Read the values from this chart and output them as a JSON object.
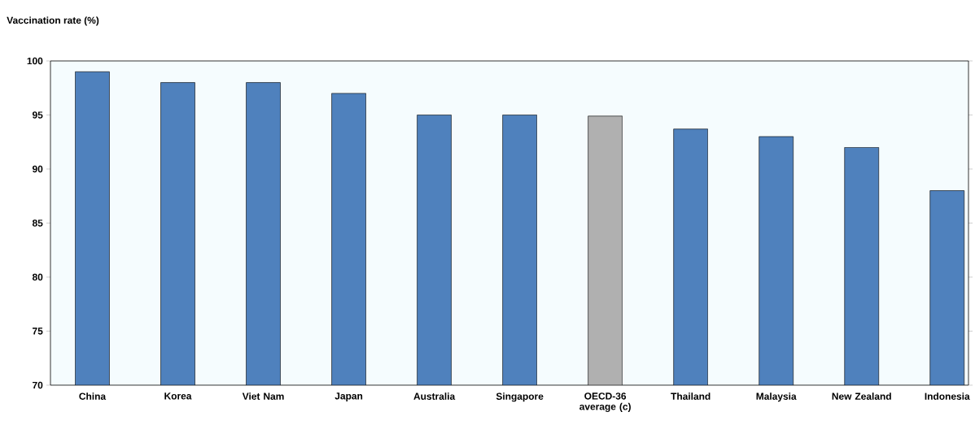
{
  "chart_data": {
    "type": "bar",
    "ylabel": "Vaccination rate (%)",
    "categories": [
      "China",
      "Korea",
      "Viet Nam",
      "Japan",
      "Australia",
      "Singapore",
      "OECD-36 average (c)",
      "Thailand",
      "Malaysia",
      "New Zealand",
      "Indonesia"
    ],
    "values": [
      99,
      98,
      98,
      97,
      95,
      95,
      94.9,
      93.7,
      93,
      92,
      88
    ],
    "colors": [
      "#4f81bd",
      "#4f81bd",
      "#4f81bd",
      "#4f81bd",
      "#4f81bd",
      "#4f81bd",
      "#b0b0b0",
      "#4f81bd",
      "#4f81bd",
      "#4f81bd",
      "#4f81bd"
    ],
    "ylim": [
      70,
      100
    ],
    "yticks": [
      70,
      75,
      80,
      85,
      90,
      95,
      100
    ],
    "grid": false
  }
}
